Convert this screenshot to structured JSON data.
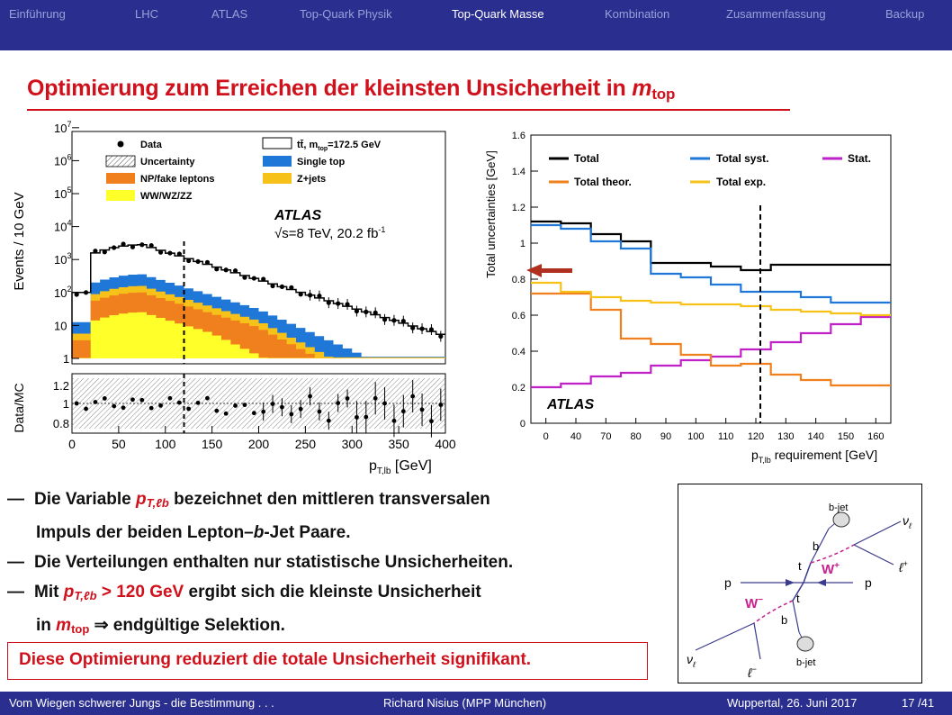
{
  "nav": {
    "items": [
      "Einführung",
      "LHC",
      "ATLAS",
      "Top-Quark Physik",
      "Top-Quark Masse",
      "Kombination",
      "Zusammenfassung",
      "Backup"
    ],
    "active_index": 4
  },
  "slide_title": {
    "text": "Optimierung zum Erreichen der kleinsten Unsicherheit in ",
    "var": "m",
    "sub": "top"
  },
  "left_plot": {
    "ylabel": "Events / 10 GeV",
    "ratio_ylabel": "Data/MC",
    "xlabel": "p",
    "xlabel_sub": "T,lb",
    "xlabel_unit": " [GeV]",
    "yticks": [
      "1",
      "10",
      "10",
      "10",
      "10",
      "10",
      "10",
      "10"
    ],
    "yexp": [
      "",
      "",
      "2",
      "3",
      "4",
      "5",
      "6",
      "7"
    ],
    "ratio_yticks": [
      "1.2",
      "1",
      "0.8"
    ],
    "xticks": [
      "0",
      "50",
      "100",
      "150",
      "200",
      "250",
      "300",
      "350",
      "400"
    ],
    "legend": [
      "Data",
      "Uncertainty",
      "NP/fake leptons",
      "WW/WZ/ZZ",
      "tt̄, m",
      "=172.5 GeV",
      "Single top",
      "Z+jets"
    ],
    "legend_sub": "top",
    "atlas": "ATLAS",
    "energy": "√s=8 TeV, 20.2 fb",
    "energy_sup": "-1"
  },
  "right_plot": {
    "ylabel": "Total uncertainties [GeV]",
    "xlabel": "p",
    "xlabel_sub": "T,lb",
    "xlabel_unit": " requirement [GeV]",
    "yticks": [
      "0",
      "0.2",
      "0.4",
      "0.6",
      "0.8",
      "1",
      "1.2",
      "1.4",
      "1.6"
    ],
    "atlas": "ATLAS",
    "legend": [
      "Total",
      "Total syst.",
      "Stat.",
      "Total theor.",
      "Total exp."
    ]
  },
  "chart_data": [
    {
      "type": "line",
      "title": "",
      "xlabel": "pT,lb requirement [GeV]",
      "ylabel": "Total uncertainties [GeV]",
      "categories": [
        "0",
        "40",
        "70",
        "80",
        "90",
        "100",
        "110",
        "120",
        "130",
        "140",
        "150",
        "160"
      ],
      "ylim": [
        0,
        1.6
      ],
      "series": [
        {
          "name": "Total",
          "color": "#000000",
          "values": [
            1.12,
            1.11,
            1.05,
            1.01,
            0.89,
            0.89,
            0.87,
            0.85,
            0.88,
            0.88,
            0.88,
            0.88
          ]
        },
        {
          "name": "Total syst.",
          "color": "#1f78d8",
          "values": [
            1.1,
            1.08,
            1.01,
            0.97,
            0.83,
            0.81,
            0.77,
            0.73,
            0.73,
            0.7,
            0.67,
            0.67
          ]
        },
        {
          "name": "Stat.",
          "color": "#c020c8",
          "values": [
            0.2,
            0.22,
            0.26,
            0.28,
            0.32,
            0.35,
            0.37,
            0.41,
            0.45,
            0.5,
            0.55,
            0.59
          ]
        },
        {
          "name": "Total theor.",
          "color": "#f07f1e",
          "values": [
            0.72,
            0.72,
            0.63,
            0.47,
            0.44,
            0.38,
            0.32,
            0.33,
            0.27,
            0.24,
            0.21,
            0.21
          ]
        },
        {
          "name": "Total exp.",
          "color": "#f6c21a",
          "values": [
            0.78,
            0.73,
            0.7,
            0.68,
            0.67,
            0.66,
            0.66,
            0.65,
            0.63,
            0.62,
            0.61,
            0.6
          ]
        }
      ]
    }
  ],
  "bullets": {
    "b1a": "Die Variable ",
    "b1var": "p",
    "b1sub": "T,ℓb",
    "b1b": " bezeichnet den mittleren transversalen",
    "b1c": "Impuls der beiden Lepton–",
    "b1d": "b",
    "b1e": "-Jet Paare.",
    "b2": "Die Verteilungen enthalten nur statistische Unsicherheiten.",
    "b3a": "Mit ",
    "b3var": "p",
    "b3sub": "T,ℓb",
    "b3b": " > 120 GeV",
    "b3c": " ergibt sich die kleinste Unsicherheit",
    "b3d": "in ",
    "b3e": "m",
    "b3f": "top",
    "b3g": " ⇒ endgültige Selektion.",
    "dash": "—"
  },
  "conclusion": "Diese Optimierung reduziert die totale Unsicherheit signifikant.",
  "diagram": {
    "labels": [
      "b-jet",
      "b-jet",
      "ν",
      "ℓ",
      "ℓ",
      "+",
      "ν",
      "ℓ",
      "ℓ",
      "−",
      "W",
      "+",
      "W",
      "−",
      "p",
      "p",
      "t",
      "t",
      "b",
      "b"
    ]
  },
  "footer": {
    "left": "Vom Wiegen schwerer Jungs - die Bestimmung . . .",
    "center": "Richard Nisius  (MPP München)",
    "right": "Wuppertal, 26. Juni 2017",
    "page": "17 /41"
  },
  "colors": {
    "nav_bg": "#2a2f8f",
    "title_red": "#d0101a",
    "single_top": "#1f78d8",
    "np_fake": "#f07f1e",
    "zjets": "#f6c21a",
    "wwwz": "#ffff2a"
  }
}
